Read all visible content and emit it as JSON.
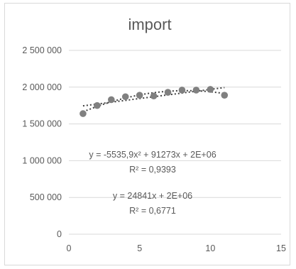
{
  "chart_data": {
    "type": "scatter",
    "title": "import",
    "xlabel": "",
    "ylabel": "",
    "xlim": [
      0,
      15
    ],
    "ylim": [
      0,
      2500000
    ],
    "x_ticks": [
      0,
      5,
      10,
      15
    ],
    "x_tick_labels": [
      "0",
      "5",
      "10",
      "15"
    ],
    "y_ticks": [
      0,
      500000,
      1000000,
      1500000,
      2000000,
      2500000
    ],
    "y_tick_labels": [
      "0",
      "500 000",
      "1 000 000",
      "1 500 000",
      "2 000 000",
      "2 500 000"
    ],
    "grid": "horizontal",
    "legend": "none",
    "series": [
      {
        "x": [
          1,
          2,
          3,
          4,
          5,
          6,
          7,
          8,
          9,
          10,
          11
        ],
        "y": [
          1640000,
          1750000,
          1830000,
          1870000,
          1890000,
          1880000,
          1930000,
          1960000,
          1960000,
          1970000,
          1890000
        ],
        "color": "#808080"
      }
    ],
    "trendlines": [
      {
        "kind": "polynomial",
        "equation": "y = -5535,9x² + 91273x + 2E+06",
        "r2": "R² = 0,9393"
      },
      {
        "kind": "linear",
        "equation": "y = 24841x + 2E+06",
        "r2": "R² = 0,6771"
      }
    ],
    "colors": {
      "marker": "#808080",
      "trendline": "#404040",
      "grid": "#d9d9d9",
      "text": "#595959"
    }
  }
}
